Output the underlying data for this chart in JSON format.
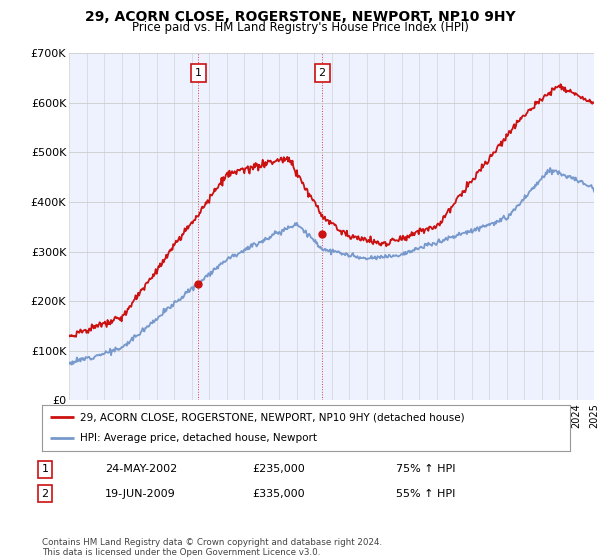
{
  "title": "29, ACORN CLOSE, ROGERSTONE, NEWPORT, NP10 9HY",
  "subtitle": "Price paid vs. HM Land Registry's House Price Index (HPI)",
  "ylim": [
    0,
    700000
  ],
  "yticks": [
    0,
    100000,
    200000,
    300000,
    400000,
    500000,
    600000,
    700000
  ],
  "ytick_labels": [
    "£0",
    "£100K",
    "£200K",
    "£300K",
    "£400K",
    "£500K",
    "£600K",
    "£700K"
  ],
  "hpi_color": "#7799cc",
  "price_color": "#cc1111",
  "sale1_date": 2002.39,
  "sale1_price": 235000,
  "sale2_date": 2009.46,
  "sale2_price": 335000,
  "legend_line1": "29, ACORN CLOSE, ROGERSTONE, NEWPORT, NP10 9HY (detached house)",
  "legend_line2": "HPI: Average price, detached house, Newport",
  "table_row1": [
    "1",
    "24-MAY-2002",
    "£235,000",
    "75% ↑ HPI"
  ],
  "table_row2": [
    "2",
    "19-JUN-2009",
    "£335,000",
    "55% ↑ HPI"
  ],
  "footer": "Contains HM Land Registry data © Crown copyright and database right 2024.\nThis data is licensed under the Open Government Licence v3.0.",
  "chart_bg": "#eef2ff",
  "xmin": 1995,
  "xmax": 2025
}
